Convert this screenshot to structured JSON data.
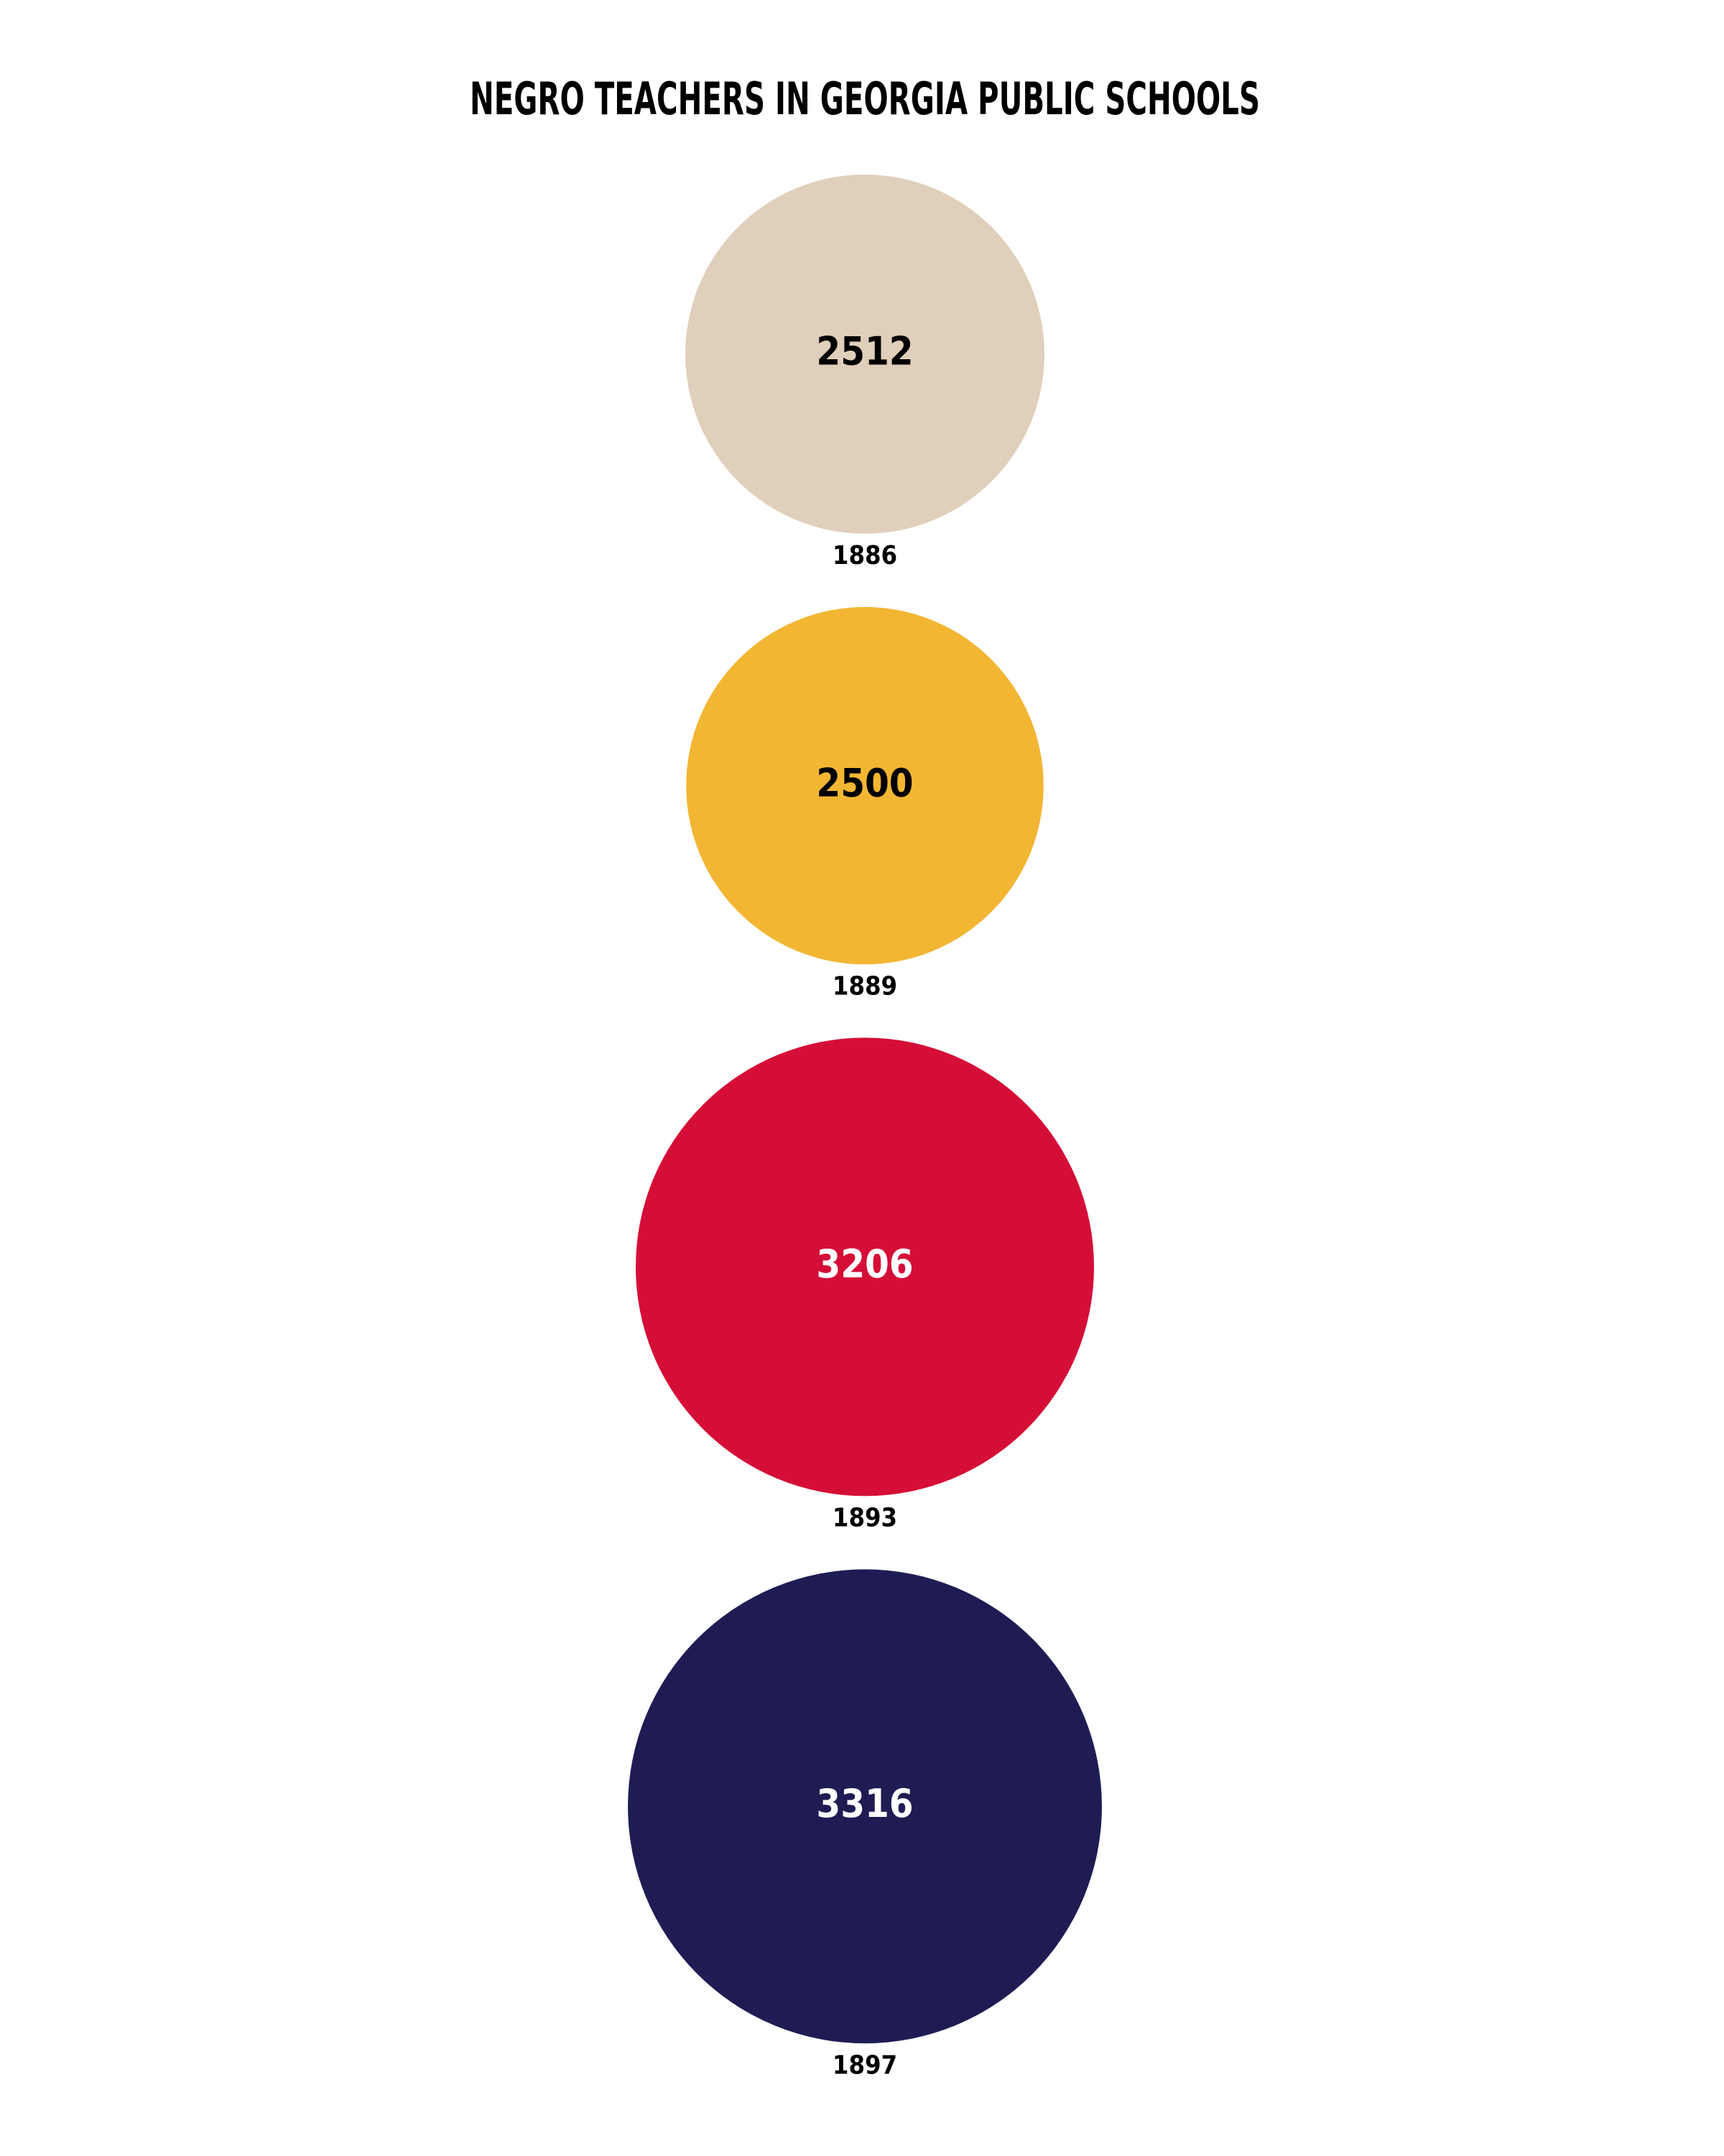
{
  "chart_data": {
    "type": "bubble",
    "title": "NEGRO TEACHERS IN GEORGIA PUBLIC SCHOOLS",
    "categories": [
      "1886",
      "1889",
      "1893",
      "1897"
    ],
    "values": [
      2512,
      2500,
      3206,
      3316
    ],
    "colors": [
      "#e0cfba",
      "#f2b633",
      "#d50e37",
      "#1f1c53"
    ]
  }
}
